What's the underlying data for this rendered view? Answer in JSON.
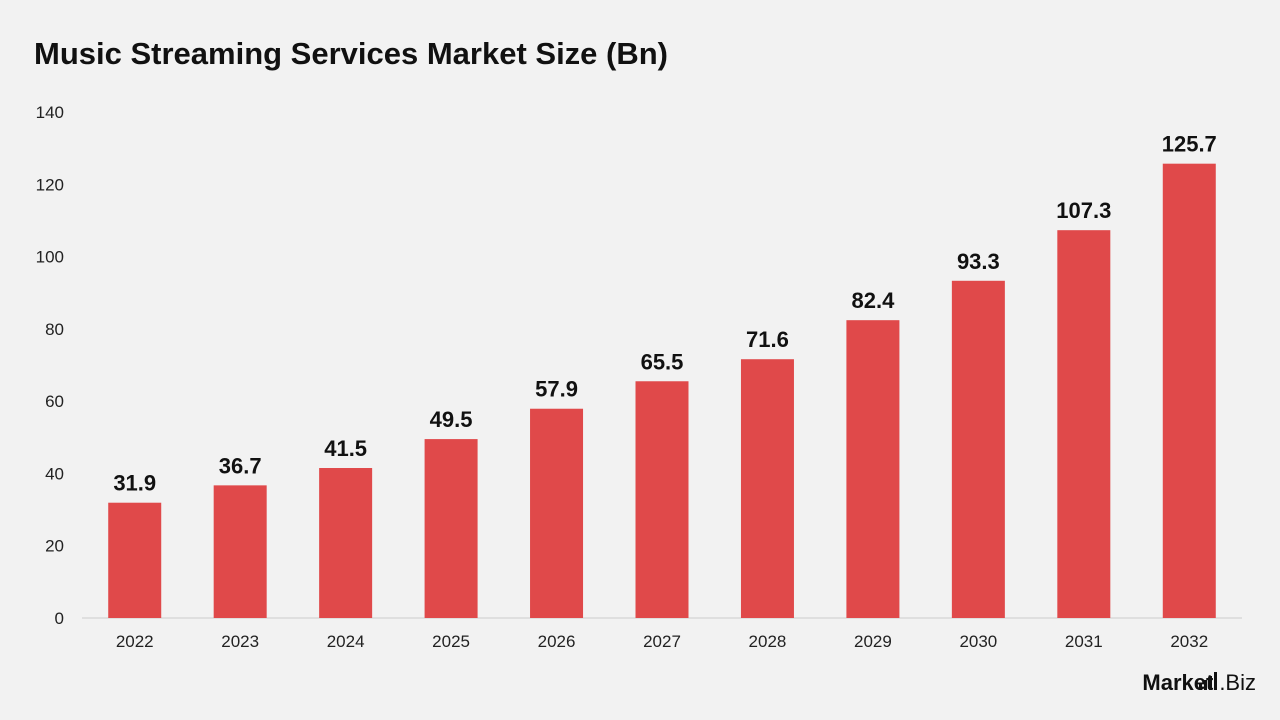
{
  "title": "Music Streaming Services Market Size (Bn)",
  "brand": {
    "part1": "Market",
    "part2": ".Biz"
  },
  "colors": {
    "bar": "#e0494a",
    "axis": "#cccccc",
    "background": "#f2f2f2"
  },
  "chart_data": {
    "type": "bar",
    "title": "Music Streaming Services Market Size (Bn)",
    "xlabel": "",
    "ylabel": "",
    "categories": [
      "2022",
      "2023",
      "2024",
      "2025",
      "2026",
      "2027",
      "2028",
      "2029",
      "2030",
      "2031",
      "2032"
    ],
    "values": [
      31.9,
      36.7,
      41.5,
      49.5,
      57.9,
      65.5,
      71.6,
      82.4,
      93.3,
      107.3,
      125.7
    ],
    "value_labels": [
      "31.9",
      "36.7",
      "41.5",
      "49.5",
      "57.9",
      "65.5",
      "71.6",
      "82.4",
      "93.3",
      "107.3",
      "125.7"
    ],
    "ylim": [
      0,
      140
    ],
    "yticks": [
      "0",
      "20",
      "40",
      "60",
      "80",
      "100",
      "120",
      "140"
    ],
    "grid": false,
    "legend": "none"
  }
}
